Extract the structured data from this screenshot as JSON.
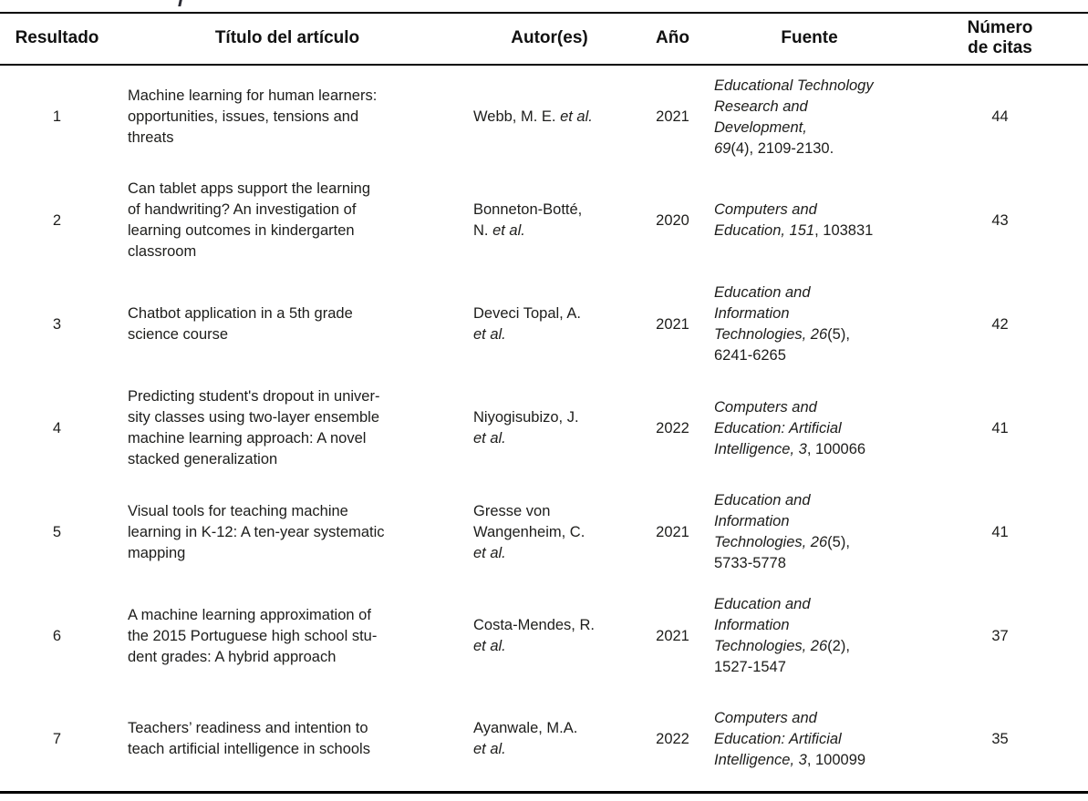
{
  "page": {
    "background": "#ffffff",
    "text_color": "#1d1d1b",
    "rule_color": "#000000"
  },
  "table": {
    "columns": {
      "resultado": "Resultado",
      "titulo": "Título del artículo",
      "autores": "Autor(es)",
      "anio": "Año",
      "fuente": "Fuente",
      "citas": "Número\nde citas"
    },
    "rows": [
      {
        "resultado": "1",
        "titulo": "Machine learning for human learners:\nopportunities, issues, tensions and\nthreats",
        "autor_name": "Webb, M. E.",
        "autor_etal": " et al.",
        "anio": "2021",
        "fuente_italic": "Educational Technology\nResearch and\nDevelopment,\n69",
        "fuente_rest": "(4), 2109-2130.",
        "citas": "44"
      },
      {
        "resultado": "2",
        "titulo": "Can tablet apps support the learning\nof handwriting? An investigation of\nlearning outcomes in kindergarten\nclassroom",
        "autor_name": "Bonneton-Botté,\nN.",
        "autor_etal": " et al.",
        "anio": "2020",
        "fuente_italic": "Computers and\nEducation, 151",
        "fuente_rest": ", 103831",
        "citas": "43"
      },
      {
        "resultado": "3",
        "titulo": "Chatbot application in a 5th grade\nscience course",
        "autor_name": "Deveci Topal, A.\n",
        "autor_etal": "et al.",
        "anio": "2021",
        "fuente_italic": "Education and\nInformation\nTechnologies, 26",
        "fuente_rest": "(5),\n6241-6265",
        "citas": "42"
      },
      {
        "resultado": "4",
        "titulo": "Predicting student's dropout in univer-\nsity classes using two-layer ensemble\nmachine learning approach: A novel\nstacked generalization",
        "autor_name": "Niyogisubizo, J.\n",
        "autor_etal": "et al.",
        "anio": "2022",
        "fuente_italic": "Computers and\nEducation: Artificial\nIntelligence, 3",
        "fuente_rest": ", 100066",
        "citas": "41"
      },
      {
        "resultado": "5",
        "titulo": "Visual tools for teaching machine\nlearning in K-12: A ten-year systematic\nmapping",
        "autor_name": "Gresse von\nWangenheim, C.\n",
        "autor_etal": "et al.",
        "anio": "2021",
        "fuente_italic": "Education and\nInformation\nTechnologies, 26",
        "fuente_rest": "(5),\n5733-5778",
        "citas": "41"
      },
      {
        "resultado": "6",
        "titulo": "A machine learning approximation of\nthe 2015 Portuguese high school stu-\ndent grades: A hybrid approach",
        "autor_name": "Costa-Mendes, R.\n",
        "autor_etal": "et al.",
        "anio": "2021",
        "fuente_italic": "Education and\nInformation\nTechnologies, 26",
        "fuente_rest": "(2),\n1527-1547",
        "citas": "37"
      },
      {
        "resultado": "7",
        "titulo": "Teachers’ readiness and intention to\nteach artificial intelligence in schools",
        "autor_name": "Ayanwale, M.A.\n",
        "autor_etal": "et al.",
        "anio": "2022",
        "fuente_italic": "Computers and\nEducation: Artificial\nIntelligence, 3",
        "fuente_rest": ", 100099",
        "citas": "35"
      }
    ]
  }
}
